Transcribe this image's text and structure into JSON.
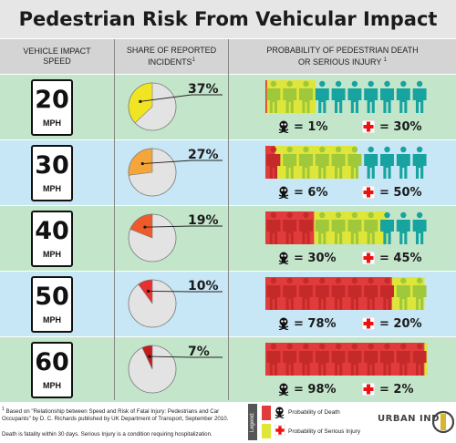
{
  "title": "Pedestrian Risk From Vehicular Impact",
  "headers": {
    "speed": "VEHICLE IMPACT\nSPEED",
    "share": "SHARE OF REPORTED\nINCIDENTS",
    "share_sup": "1",
    "prob": "PROBABILITY OF PEDESTRIAN DEATH\nOR SERIOUS INJURY",
    "prob_sup": "1"
  },
  "colors": {
    "death": "#e23b3b",
    "injury": "#dfe63a",
    "unharmed": "#17a3a0",
    "rows": [
      "#c3e6cb",
      "#c7e6f6",
      "#c3e6cb",
      "#c7e6f6",
      "#c3e6cb"
    ]
  },
  "unit": "MPH",
  "rows": [
    {
      "speed": "20",
      "share": 37,
      "share_label": "37%",
      "pie_color": "#f1e523",
      "death": 1,
      "injury": 30,
      "death_label": "= 1%",
      "injury_label": "= 30%"
    },
    {
      "speed": "30",
      "share": 27,
      "share_label": "27%",
      "pie_color": "#f5a63a",
      "death": 6,
      "injury": 50,
      "death_label": "= 6%",
      "injury_label": "= 50%"
    },
    {
      "speed": "40",
      "share": 19,
      "share_label": "19%",
      "pie_color": "#ee5a2a",
      "death": 30,
      "injury": 45,
      "death_label": "= 30%",
      "injury_label": "= 45%"
    },
    {
      "speed": "50",
      "share": 10,
      "share_label": "10%",
      "pie_color": "#ea2f2f",
      "death": 78,
      "injury": 20,
      "death_label": "= 78%",
      "injury_label": "= 20%"
    },
    {
      "speed": "60",
      "share": 7,
      "share_label": "7%",
      "pie_color": "#c41c1c",
      "death": 98,
      "injury": 2,
      "death_label": "= 98%",
      "injury_label": "= 2%"
    }
  ],
  "footnote_sup": "1",
  "footnote": "Based on \"Relationship between Speed and Risk of Fatal Injury: Pedestrians and Car Occupants\" by D. C. Richards published by UK Department of Transport, September 2010.",
  "footnote2": "Death is fatality within 30 days. Serious Injury is a condition requiring hospitalization.",
  "legend": {
    "tag": "Legend:",
    "death": "Probability of Death",
    "injury": "Probability of Serious Injury"
  },
  "logo": "URBAN IND"
}
